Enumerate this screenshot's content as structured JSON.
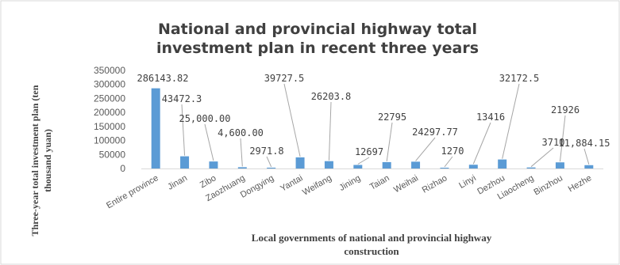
{
  "chart_data": {
    "type": "bar",
    "title_lines": [
      "National and provincial highway total",
      "investment plan in recent three years"
    ],
    "ylabel_lines": [
      "Three-year total investment plan (ten",
      "thousand yuan)"
    ],
    "xlabel_lines": [
      "Local governments of national and provincial highway",
      "construction"
    ],
    "ylim": [
      0,
      350000
    ],
    "yticks": [
      "0",
      "50000",
      "100000",
      "150000",
      "200000",
      "250000",
      "300000",
      "350000"
    ],
    "ytick_values": [
      0,
      50000,
      100000,
      150000,
      200000,
      250000,
      300000,
      350000
    ],
    "grid": false,
    "legend": "none",
    "bar_color": "#5b9bd5",
    "categories": [
      "Entire province",
      "Jinan",
      "Zibo",
      "Zaozhuang",
      "Dongying",
      "Yantai",
      "Weifang",
      "Jining",
      "Taian",
      "Weihai",
      "Rizhao",
      "Linyi",
      "Dezhou",
      "Liaocheng",
      "Binzhou",
      "Hezhe"
    ],
    "values": [
      286143.82,
      43472.3,
      25000,
      4600,
      2971.8,
      39727.5,
      26203.8,
      12697,
      22795,
      24297.77,
      1270,
      13416,
      32172.5,
      3710,
      21926,
      11884.15
    ],
    "data_labels": [
      "286143.82",
      "43472.3",
      "25,000.00",
      "4,600.00",
      "2971.8",
      "39727.5",
      "26203.8",
      "12697",
      "22795",
      "24297.77",
      "1270",
      "13416",
      "32172.5",
      "3710",
      "21926",
      "11,884.15"
    ]
  }
}
